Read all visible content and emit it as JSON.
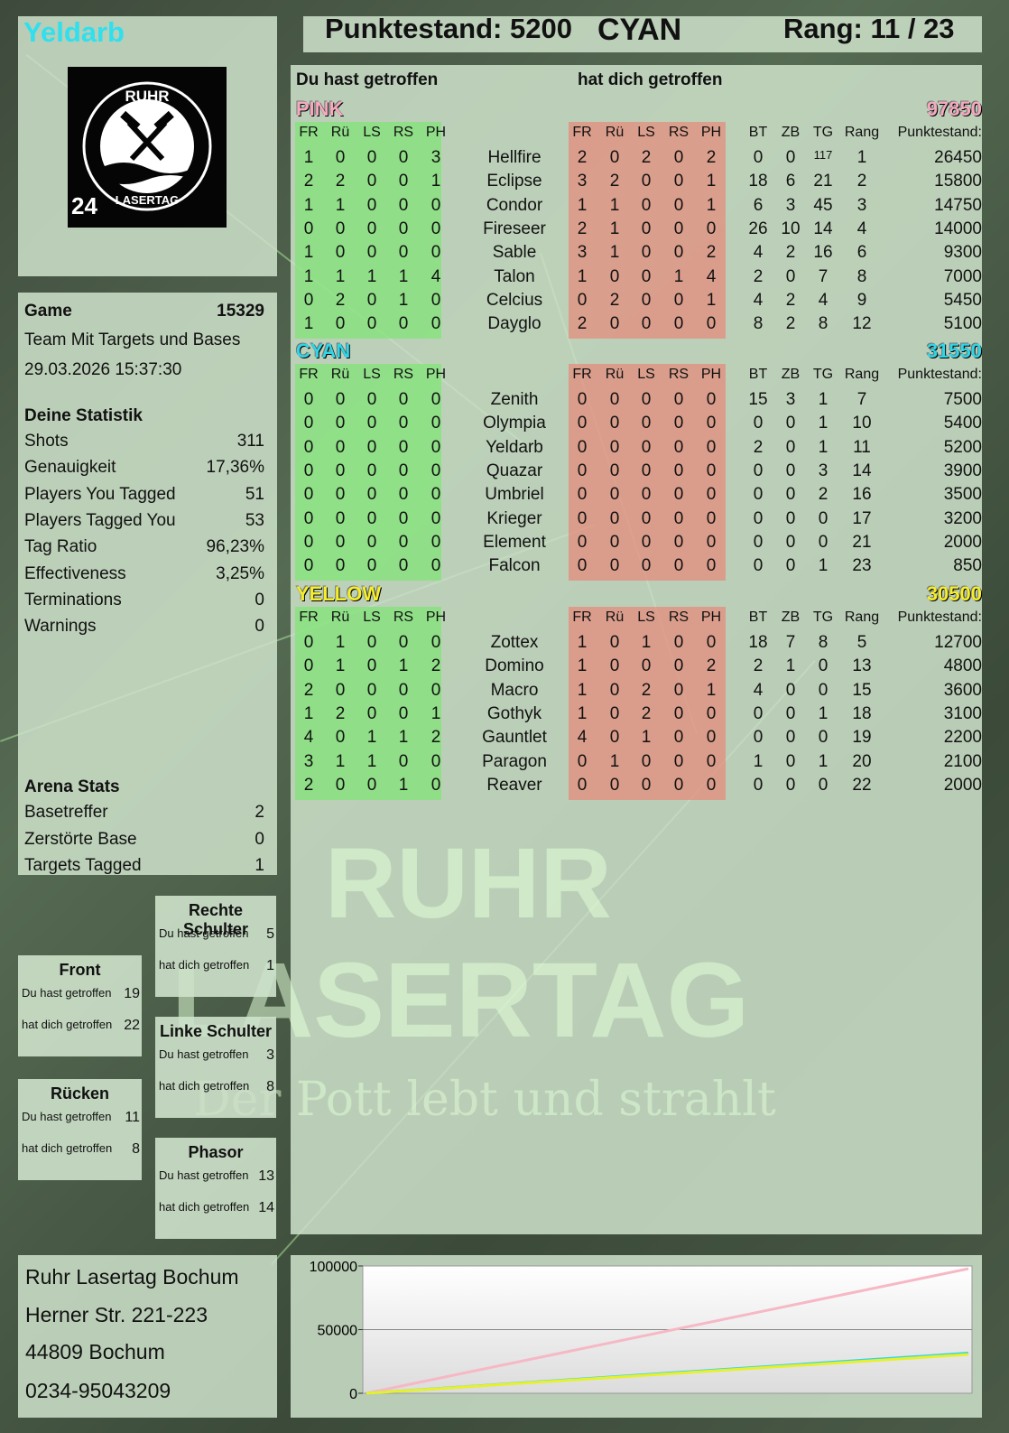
{
  "player": {
    "name": "Yeldarb",
    "team": "CYAN"
  },
  "header": {
    "score_label": "Punktestand:",
    "score": "5200",
    "team": "CYAN",
    "rank_label": "Rang:",
    "rank": "11 / 23"
  },
  "logo": {
    "text_top": "RUHR",
    "text_bottom": "LASERTAG",
    "number": "24"
  },
  "game": {
    "label": "Game",
    "id": "15329",
    "mode": "Team Mit Targets und Bases",
    "date": "29.03.2026 15:37:30"
  },
  "stats": {
    "title": "Deine Statistik",
    "items": [
      {
        "label": "Shots",
        "value": "311"
      },
      {
        "label": "Genauigkeit",
        "value": "17,36%"
      },
      {
        "label": "Players You Tagged",
        "value": "51"
      },
      {
        "label": "Players Tagged You",
        "value": "53"
      },
      {
        "label": "Tag Ratio",
        "value": "96,23%"
      },
      {
        "label": "Effectiveness",
        "value": "3,25%"
      },
      {
        "label": "Terminations",
        "value": "0"
      },
      {
        "label": "Warnings",
        "value": "0"
      }
    ]
  },
  "arena": {
    "title": "Arena Stats",
    "items": [
      {
        "label": "Basetreffer",
        "value": "2"
      },
      {
        "label": "Zerstörte Base",
        "value": "0"
      },
      {
        "label": "Targets Tagged",
        "value": "1"
      }
    ]
  },
  "hits": {
    "you_hit": "Du hast getroffen",
    "hit_you": "hat dich getroffen",
    "zones": [
      {
        "name": "Rechte Schulter",
        "you": "5",
        "them": "1"
      },
      {
        "name": "Front",
        "you": "19",
        "them": "22"
      },
      {
        "name": "Linke Schulter",
        "you": "3",
        "them": "8"
      },
      {
        "name": "Rücken",
        "you": "11",
        "them": "8"
      },
      {
        "name": "Phasor",
        "you": "13",
        "them": "14"
      }
    ]
  },
  "table": {
    "you_hit_label": "Du hast getroffen",
    "hit_you_label": "hat dich getroffen",
    "cols_left": [
      "FR",
      "Rü",
      "LS",
      "RS",
      "PH"
    ],
    "cols_right": [
      "FR",
      "Rü",
      "LS",
      "RS",
      "PH"
    ],
    "cols_stats": [
      "BT",
      "ZB",
      "TG",
      "Rang",
      "Punktestand:"
    ],
    "teams": [
      {
        "name": "PINK",
        "score": "97850",
        "color": "#f4a9bf",
        "players": [
          {
            "l": [
              "1",
              "0",
              "0",
              "0",
              "3"
            ],
            "n": "Hellfire",
            "r": [
              "2",
              "0",
              "2",
              "0",
              "2"
            ],
            "s": [
              "0",
              "0",
              "117",
              "1",
              "26450"
            ]
          },
          {
            "l": [
              "2",
              "2",
              "0",
              "0",
              "1"
            ],
            "n": "Eclipse",
            "r": [
              "3",
              "2",
              "0",
              "0",
              "1"
            ],
            "s": [
              "18",
              "6",
              "21",
              "2",
              "15800"
            ]
          },
          {
            "l": [
              "1",
              "1",
              "0",
              "0",
              "0"
            ],
            "n": "Condor",
            "r": [
              "1",
              "1",
              "0",
              "0",
              "1"
            ],
            "s": [
              "6",
              "3",
              "45",
              "3",
              "14750"
            ]
          },
          {
            "l": [
              "0",
              "0",
              "0",
              "0",
              "0"
            ],
            "n": "Fireseer",
            "r": [
              "2",
              "1",
              "0",
              "0",
              "0"
            ],
            "s": [
              "26",
              "10",
              "14",
              "4",
              "14000"
            ]
          },
          {
            "l": [
              "1",
              "0",
              "0",
              "0",
              "0"
            ],
            "n": "Sable",
            "r": [
              "3",
              "1",
              "0",
              "0",
              "2"
            ],
            "s": [
              "4",
              "2",
              "16",
              "6",
              "9300"
            ]
          },
          {
            "l": [
              "1",
              "1",
              "1",
              "1",
              "4"
            ],
            "n": "Talon",
            "r": [
              "1",
              "0",
              "0",
              "1",
              "4"
            ],
            "s": [
              "2",
              "0",
              "7",
              "8",
              "7000"
            ]
          },
          {
            "l": [
              "0",
              "2",
              "0",
              "1",
              "0"
            ],
            "n": "Celcius",
            "r": [
              "0",
              "2",
              "0",
              "0",
              "1"
            ],
            "s": [
              "4",
              "2",
              "4",
              "9",
              "5450"
            ]
          },
          {
            "l": [
              "1",
              "0",
              "0",
              "0",
              "0"
            ],
            "n": "Dayglo",
            "r": [
              "2",
              "0",
              "0",
              "0",
              "0"
            ],
            "s": [
              "8",
              "2",
              "8",
              "12",
              "5100"
            ]
          }
        ]
      },
      {
        "name": "CYAN",
        "score": "31550",
        "color": "#2fd6e8",
        "players": [
          {
            "l": [
              "0",
              "0",
              "0",
              "0",
              "0"
            ],
            "n": "Zenith",
            "r": [
              "0",
              "0",
              "0",
              "0",
              "0"
            ],
            "s": [
              "15",
              "3",
              "1",
              "7",
              "7500"
            ]
          },
          {
            "l": [
              "0",
              "0",
              "0",
              "0",
              "0"
            ],
            "n": "Olympia",
            "r": [
              "0",
              "0",
              "0",
              "0",
              "0"
            ],
            "s": [
              "0",
              "0",
              "1",
              "10",
              "5400"
            ]
          },
          {
            "l": [
              "0",
              "0",
              "0",
              "0",
              "0"
            ],
            "n": "Yeldarb",
            "r": [
              "0",
              "0",
              "0",
              "0",
              "0"
            ],
            "s": [
              "2",
              "0",
              "1",
              "11",
              "5200"
            ]
          },
          {
            "l": [
              "0",
              "0",
              "0",
              "0",
              "0"
            ],
            "n": "Quazar",
            "r": [
              "0",
              "0",
              "0",
              "0",
              "0"
            ],
            "s": [
              "0",
              "0",
              "3",
              "14",
              "3900"
            ]
          },
          {
            "l": [
              "0",
              "0",
              "0",
              "0",
              "0"
            ],
            "n": "Umbriel",
            "r": [
              "0",
              "0",
              "0",
              "0",
              "0"
            ],
            "s": [
              "0",
              "0",
              "2",
              "16",
              "3500"
            ]
          },
          {
            "l": [
              "0",
              "0",
              "0",
              "0",
              "0"
            ],
            "n": "Krieger",
            "r": [
              "0",
              "0",
              "0",
              "0",
              "0"
            ],
            "s": [
              "0",
              "0",
              "0",
              "17",
              "3200"
            ]
          },
          {
            "l": [
              "0",
              "0",
              "0",
              "0",
              "0"
            ],
            "n": "Element",
            "r": [
              "0",
              "0",
              "0",
              "0",
              "0"
            ],
            "s": [
              "0",
              "0",
              "0",
              "21",
              "2000"
            ]
          },
          {
            "l": [
              "0",
              "0",
              "0",
              "0",
              "0"
            ],
            "n": "Falcon",
            "r": [
              "0",
              "0",
              "0",
              "0",
              "0"
            ],
            "s": [
              "0",
              "0",
              "1",
              "23",
              "850"
            ]
          }
        ]
      },
      {
        "name": "YELLOW",
        "score": "30500",
        "color": "#f5ee2a",
        "players": [
          {
            "l": [
              "0",
              "1",
              "0",
              "0",
              "0"
            ],
            "n": "Zottex",
            "r": [
              "1",
              "0",
              "1",
              "0",
              "0"
            ],
            "s": [
              "18",
              "7",
              "8",
              "5",
              "12700"
            ]
          },
          {
            "l": [
              "0",
              "1",
              "0",
              "1",
              "2"
            ],
            "n": "Domino",
            "r": [
              "1",
              "0",
              "0",
              "0",
              "2"
            ],
            "s": [
              "2",
              "1",
              "0",
              "13",
              "4800"
            ]
          },
          {
            "l": [
              "2",
              "0",
              "0",
              "0",
              "0"
            ],
            "n": "Macro",
            "r": [
              "1",
              "0",
              "2",
              "0",
              "1"
            ],
            "s": [
              "4",
              "0",
              "0",
              "15",
              "3600"
            ]
          },
          {
            "l": [
              "1",
              "2",
              "0",
              "0",
              "1"
            ],
            "n": "Gothyk",
            "r": [
              "1",
              "0",
              "2",
              "0",
              "0"
            ],
            "s": [
              "0",
              "0",
              "1",
              "18",
              "3100"
            ]
          },
          {
            "l": [
              "4",
              "0",
              "1",
              "1",
              "2"
            ],
            "n": "Gauntlet",
            "r": [
              "4",
              "0",
              "1",
              "0",
              "0"
            ],
            "s": [
              "0",
              "0",
              "0",
              "19",
              "2200"
            ]
          },
          {
            "l": [
              "3",
              "1",
              "1",
              "0",
              "0"
            ],
            "n": "Paragon",
            "r": [
              "0",
              "1",
              "0",
              "0",
              "0"
            ],
            "s": [
              "1",
              "0",
              "1",
              "20",
              "2100"
            ]
          },
          {
            "l": [
              "2",
              "0",
              "0",
              "1",
              "0"
            ],
            "n": "Reaver",
            "r": [
              "0",
              "0",
              "0",
              "0",
              "0"
            ],
            "s": [
              "0",
              "0",
              "0",
              "22",
              "2000"
            ]
          }
        ]
      }
    ]
  },
  "address": {
    "line1": "Ruhr Lasertag Bochum",
    "line2": "Herner Str. 221-223",
    "line3": "44809 Bochum",
    "line4": "0234-95043209"
  },
  "watermark": {
    "line1": "RUHR",
    "line2": "LASERTAG",
    "line3": "Der Pott lebt und strahlt"
  },
  "chart_data": {
    "type": "line",
    "title": "",
    "xlabel": "",
    "ylabel": "",
    "ylim": [
      0,
      100000
    ],
    "yticks": [
      "100000",
      "50000",
      "0"
    ],
    "yticks_values": [
      100000,
      50000,
      0
    ],
    "x": [
      0,
      1
    ],
    "series": [
      {
        "color": "#f6b8c4",
        "values": [
          0,
          97850
        ]
      },
      {
        "color": "#2fd6e8",
        "values": [
          0,
          31550
        ]
      },
      {
        "color": "#e8f02a",
        "values": [
          0,
          30500
        ]
      }
    ],
    "grid": true
  }
}
